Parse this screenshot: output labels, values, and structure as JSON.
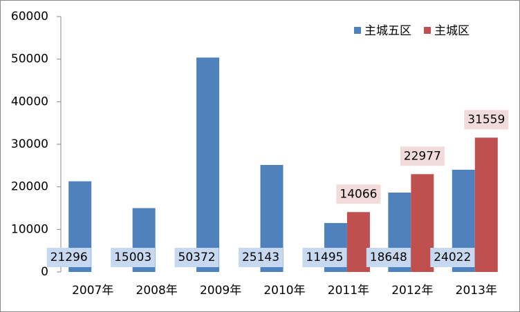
{
  "chart_data": {
    "type": "bar",
    "categories": [
      "2007年",
      "2008年",
      "2009年",
      "2010年",
      "2011年",
      "2012年",
      "2013年"
    ],
    "series": [
      {
        "name": "主城五区",
        "color": "#4f81bd",
        "values": [
          21296,
          15003,
          50372,
          25143,
          11495,
          18648,
          24022
        ]
      },
      {
        "name": "主城区",
        "color": "#c0504d",
        "values": [
          null,
          null,
          null,
          null,
          14066,
          22977,
          31559
        ]
      }
    ],
    "ylim": [
      0,
      60000
    ],
    "yticks": [
      0,
      10000,
      20000,
      30000,
      40000,
      50000,
      60000
    ],
    "legend": "top-right"
  }
}
